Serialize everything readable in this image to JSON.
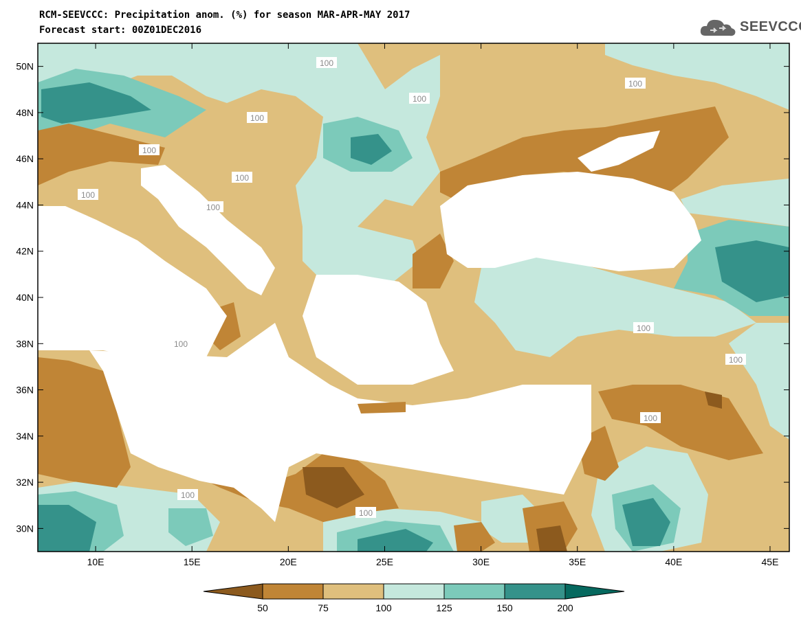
{
  "header": {
    "title_line1": "RCM-SEEVCCC: Precipitation anom. (%) for season MAR-APR-MAY 2017",
    "title_line2": "Forecast start: 00Z01DEC2016"
  },
  "logo": {
    "text": "SEEVCCC",
    "icon": "cloud-icon"
  },
  "map": {
    "lon_range": [
      7,
      46
    ],
    "lat_range": [
      29,
      51
    ],
    "lon_ticks": [
      "10E",
      "15E",
      "20E",
      "25E",
      "30E",
      "35E",
      "40E",
      "45E"
    ],
    "lat_ticks": [
      "50N",
      "48N",
      "46N",
      "44N",
      "42N",
      "40N",
      "38N",
      "36N",
      "34N",
      "32N",
      "30N"
    ],
    "contour_labels": [
      "100",
      "100",
      "100",
      "100",
      "100",
      "100",
      "100",
      "100",
      "100",
      "100",
      "100",
      "100",
      "100",
      "100"
    ]
  },
  "legend": {
    "thresholds": [
      "50",
      "75",
      "100",
      "125",
      "150",
      "200"
    ],
    "colors": [
      "#8c5a1e",
      "#c08536",
      "#dfbf7d",
      "#c5e8dd",
      "#7ccaba",
      "#35928a",
      "#06695f"
    ]
  }
}
